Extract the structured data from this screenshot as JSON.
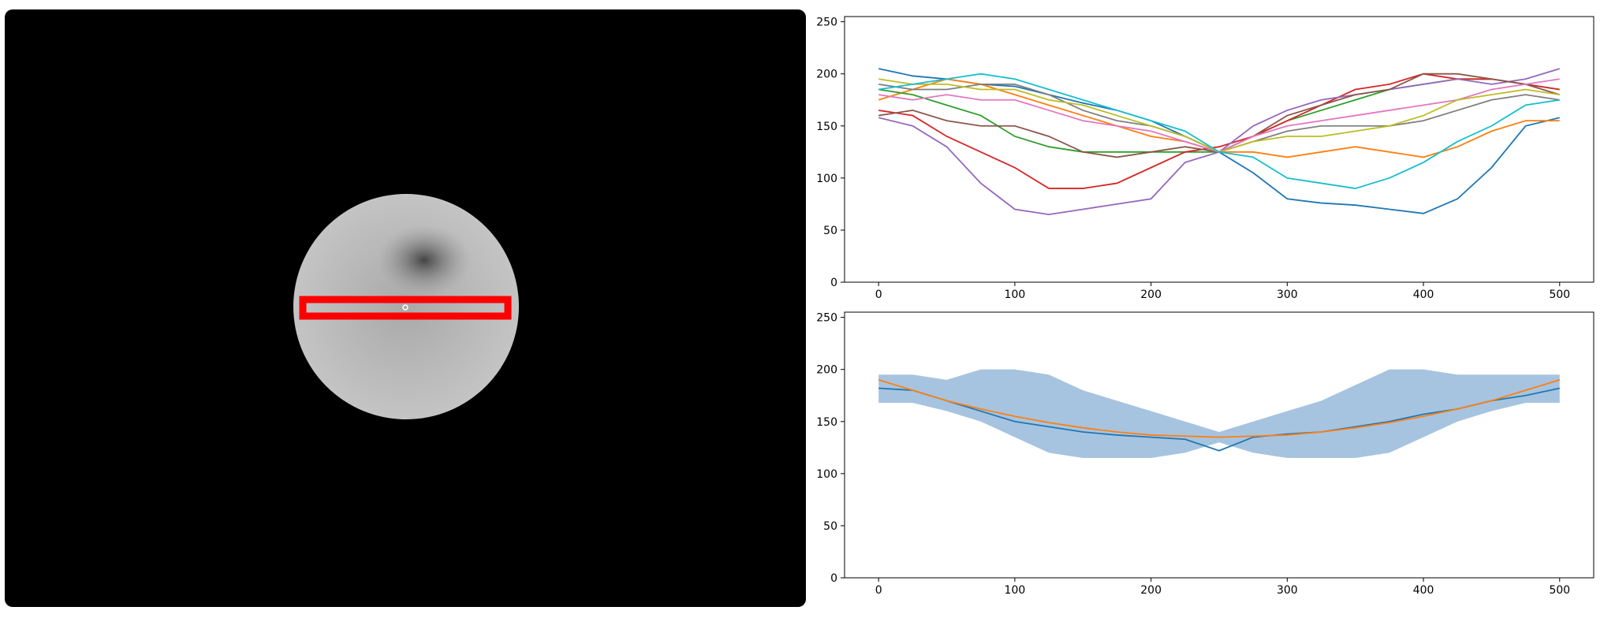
{
  "chart_data": [
    {
      "type": "line",
      "x": [
        0,
        25,
        50,
        75,
        100,
        125,
        150,
        175,
        200,
        225,
        250,
        275,
        300,
        325,
        350,
        375,
        400,
        425,
        450,
        475,
        500
      ],
      "xlim": [
        -25,
        525
      ],
      "ylim": [
        0,
        255
      ],
      "xticks": [
        0,
        100,
        200,
        300,
        400,
        500
      ],
      "yticks": [
        0,
        50,
        100,
        150,
        200,
        250
      ],
      "series": [
        {
          "color": "#1f77b4",
          "values": [
            205,
            198,
            195,
            190,
            188,
            180,
            172,
            165,
            155,
            140,
            125,
            105,
            80,
            76,
            74,
            70,
            66,
            80,
            110,
            150,
            158
          ]
        },
        {
          "color": "#ff7f0e",
          "values": [
            175,
            185,
            195,
            190,
            180,
            170,
            160,
            150,
            140,
            135,
            125,
            125,
            120,
            125,
            130,
            125,
            120,
            130,
            145,
            155,
            155
          ]
        },
        {
          "color": "#2ca02c",
          "values": [
            185,
            180,
            170,
            160,
            140,
            130,
            125,
            125,
            125,
            125,
            125,
            140,
            155,
            165,
            175,
            185,
            190,
            195,
            195,
            190,
            185
          ]
        },
        {
          "color": "#d62728",
          "values": [
            165,
            160,
            140,
            125,
            110,
            90,
            90,
            95,
            110,
            125,
            130,
            140,
            155,
            170,
            185,
            190,
            200,
            195,
            195,
            190,
            185
          ]
        },
        {
          "color": "#9467bd",
          "values": [
            158,
            150,
            130,
            95,
            70,
            65,
            70,
            75,
            80,
            115,
            125,
            150,
            165,
            175,
            180,
            185,
            190,
            195,
            190,
            195,
            205
          ]
        },
        {
          "color": "#8c564b",
          "values": [
            160,
            165,
            155,
            150,
            150,
            140,
            125,
            120,
            125,
            130,
            125,
            140,
            160,
            170,
            180,
            185,
            200,
            200,
            195,
            190,
            180
          ]
        },
        {
          "color": "#e377c2",
          "values": [
            180,
            175,
            180,
            175,
            175,
            165,
            155,
            150,
            145,
            135,
            125,
            140,
            150,
            155,
            160,
            165,
            170,
            175,
            185,
            190,
            195
          ]
        },
        {
          "color": "#7f7f7f",
          "values": [
            190,
            185,
            185,
            190,
            190,
            180,
            165,
            155,
            150,
            140,
            125,
            135,
            145,
            150,
            150,
            150,
            155,
            165,
            175,
            180,
            175
          ]
        },
        {
          "color": "#bcbd22",
          "values": [
            195,
            190,
            190,
            185,
            185,
            175,
            170,
            160,
            150,
            140,
            125,
            135,
            140,
            140,
            145,
            150,
            160,
            175,
            180,
            185,
            180
          ]
        },
        {
          "color": "#17becf",
          "values": [
            185,
            190,
            195,
            200,
            195,
            185,
            175,
            165,
            155,
            145,
            125,
            120,
            100,
            95,
            90,
            100,
            115,
            135,
            150,
            170,
            175
          ]
        }
      ]
    },
    {
      "type": "line",
      "x": [
        0,
        25,
        50,
        75,
        100,
        125,
        150,
        175,
        200,
        225,
        250,
        275,
        300,
        325,
        350,
        375,
        400,
        425,
        450,
        475,
        500
      ],
      "xlim": [
        -25,
        525
      ],
      "ylim": [
        0,
        255
      ],
      "xticks": [
        0,
        100,
        200,
        300,
        400,
        500
      ],
      "yticks": [
        0,
        50,
        100,
        150,
        200,
        250
      ],
      "band": {
        "color": "#a6c4e0",
        "upper": [
          195,
          195,
          190,
          200,
          200,
          195,
          180,
          170,
          160,
          150,
          140,
          150,
          160,
          170,
          185,
          200,
          200,
          195,
          195,
          195,
          195
        ],
        "lower": [
          168,
          168,
          160,
          150,
          135,
          120,
          115,
          115,
          115,
          120,
          130,
          120,
          115,
          115,
          115,
          120,
          135,
          150,
          160,
          168,
          168
        ]
      },
      "series": [
        {
          "color": "#1f77b4",
          "values": [
            182,
            180,
            170,
            160,
            150,
            145,
            140,
            137,
            135,
            133,
            122,
            135,
            138,
            140,
            145,
            150,
            157,
            162,
            170,
            175,
            182
          ]
        },
        {
          "color": "#ff7f0e",
          "values": [
            190,
            180,
            170,
            162,
            155,
            149,
            144,
            140,
            137,
            136,
            135,
            136,
            137,
            140,
            144,
            149,
            155,
            162,
            170,
            180,
            190
          ]
        }
      ]
    }
  ]
}
